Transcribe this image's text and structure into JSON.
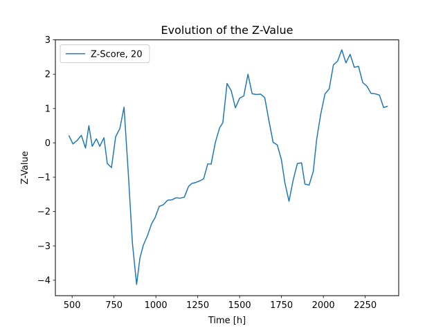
{
  "chart_data": {
    "type": "line",
    "title": "Evolution of the Z-Value",
    "xlabel": "Time [h]",
    "ylabel": "Z-Value",
    "xlim": [
      400,
      2450
    ],
    "ylim": [
      -4.45,
      3.0
    ],
    "xticks": [
      500,
      750,
      1000,
      1250,
      1500,
      1750,
      2000,
      2250
    ],
    "xtick_labels": [
      "500",
      "750",
      "1000",
      "1250",
      "1500",
      "1750",
      "2000",
      "2250"
    ],
    "yticks": [
      -4,
      -3,
      -2,
      -1,
      0,
      1,
      2,
      3
    ],
    "ytick_labels": [
      "−4",
      "−3",
      "−2",
      "−1",
      "0",
      "1",
      "2",
      "3"
    ],
    "grid": false,
    "legend_position": "top-left",
    "series": [
      {
        "name": "Z-Score, 20",
        "color": "#1f77b4",
        "x": [
          480,
          505,
          530,
          555,
          580,
          600,
          620,
          645,
          665,
          690,
          710,
          735,
          760,
          785,
          810,
          835,
          860,
          885,
          905,
          925,
          950,
          975,
          995,
          1020,
          1045,
          1070,
          1095,
          1120,
          1145,
          1170,
          1195,
          1215,
          1240,
          1265,
          1285,
          1310,
          1330,
          1355,
          1380,
          1400,
          1425,
          1450,
          1475,
          1500,
          1525,
          1550,
          1575,
          1600,
          1625,
          1650,
          1675,
          1700,
          1725,
          1750,
          1770,
          1795,
          1820,
          1845,
          1870,
          1890,
          1915,
          1940,
          1960,
          1985,
          2010,
          2035,
          2060,
          2085,
          2110,
          2135,
          2160,
          2185,
          2210,
          2235,
          2260,
          2285,
          2310,
          2335,
          2360,
          2385
        ],
        "y": [
          0.22,
          -0.03,
          0.07,
          0.22,
          -0.15,
          0.5,
          -0.1,
          0.12,
          -0.1,
          0.15,
          -0.6,
          -0.72,
          0.18,
          0.42,
          1.04,
          -0.85,
          -2.92,
          -4.12,
          -3.35,
          -2.98,
          -2.7,
          -2.35,
          -2.18,
          -1.85,
          -1.8,
          -1.67,
          -1.66,
          -1.6,
          -1.61,
          -1.58,
          -1.27,
          -1.18,
          -1.15,
          -1.1,
          -1.05,
          -0.61,
          -0.62,
          0.01,
          0.43,
          0.59,
          1.73,
          1.52,
          1.02,
          1.3,
          1.37,
          2.0,
          1.43,
          1.41,
          1.42,
          1.32,
          0.65,
          0.02,
          -0.06,
          -0.5,
          -1.15,
          -1.7,
          -1.08,
          -0.6,
          -0.58,
          -1.2,
          -1.23,
          -0.83,
          0.1,
          0.85,
          1.43,
          1.57,
          2.27,
          2.38,
          2.71,
          2.33,
          2.58,
          2.2,
          2.23,
          1.76,
          1.65,
          1.44,
          1.43,
          1.39,
          1.03,
          1.07
        ]
      }
    ]
  }
}
